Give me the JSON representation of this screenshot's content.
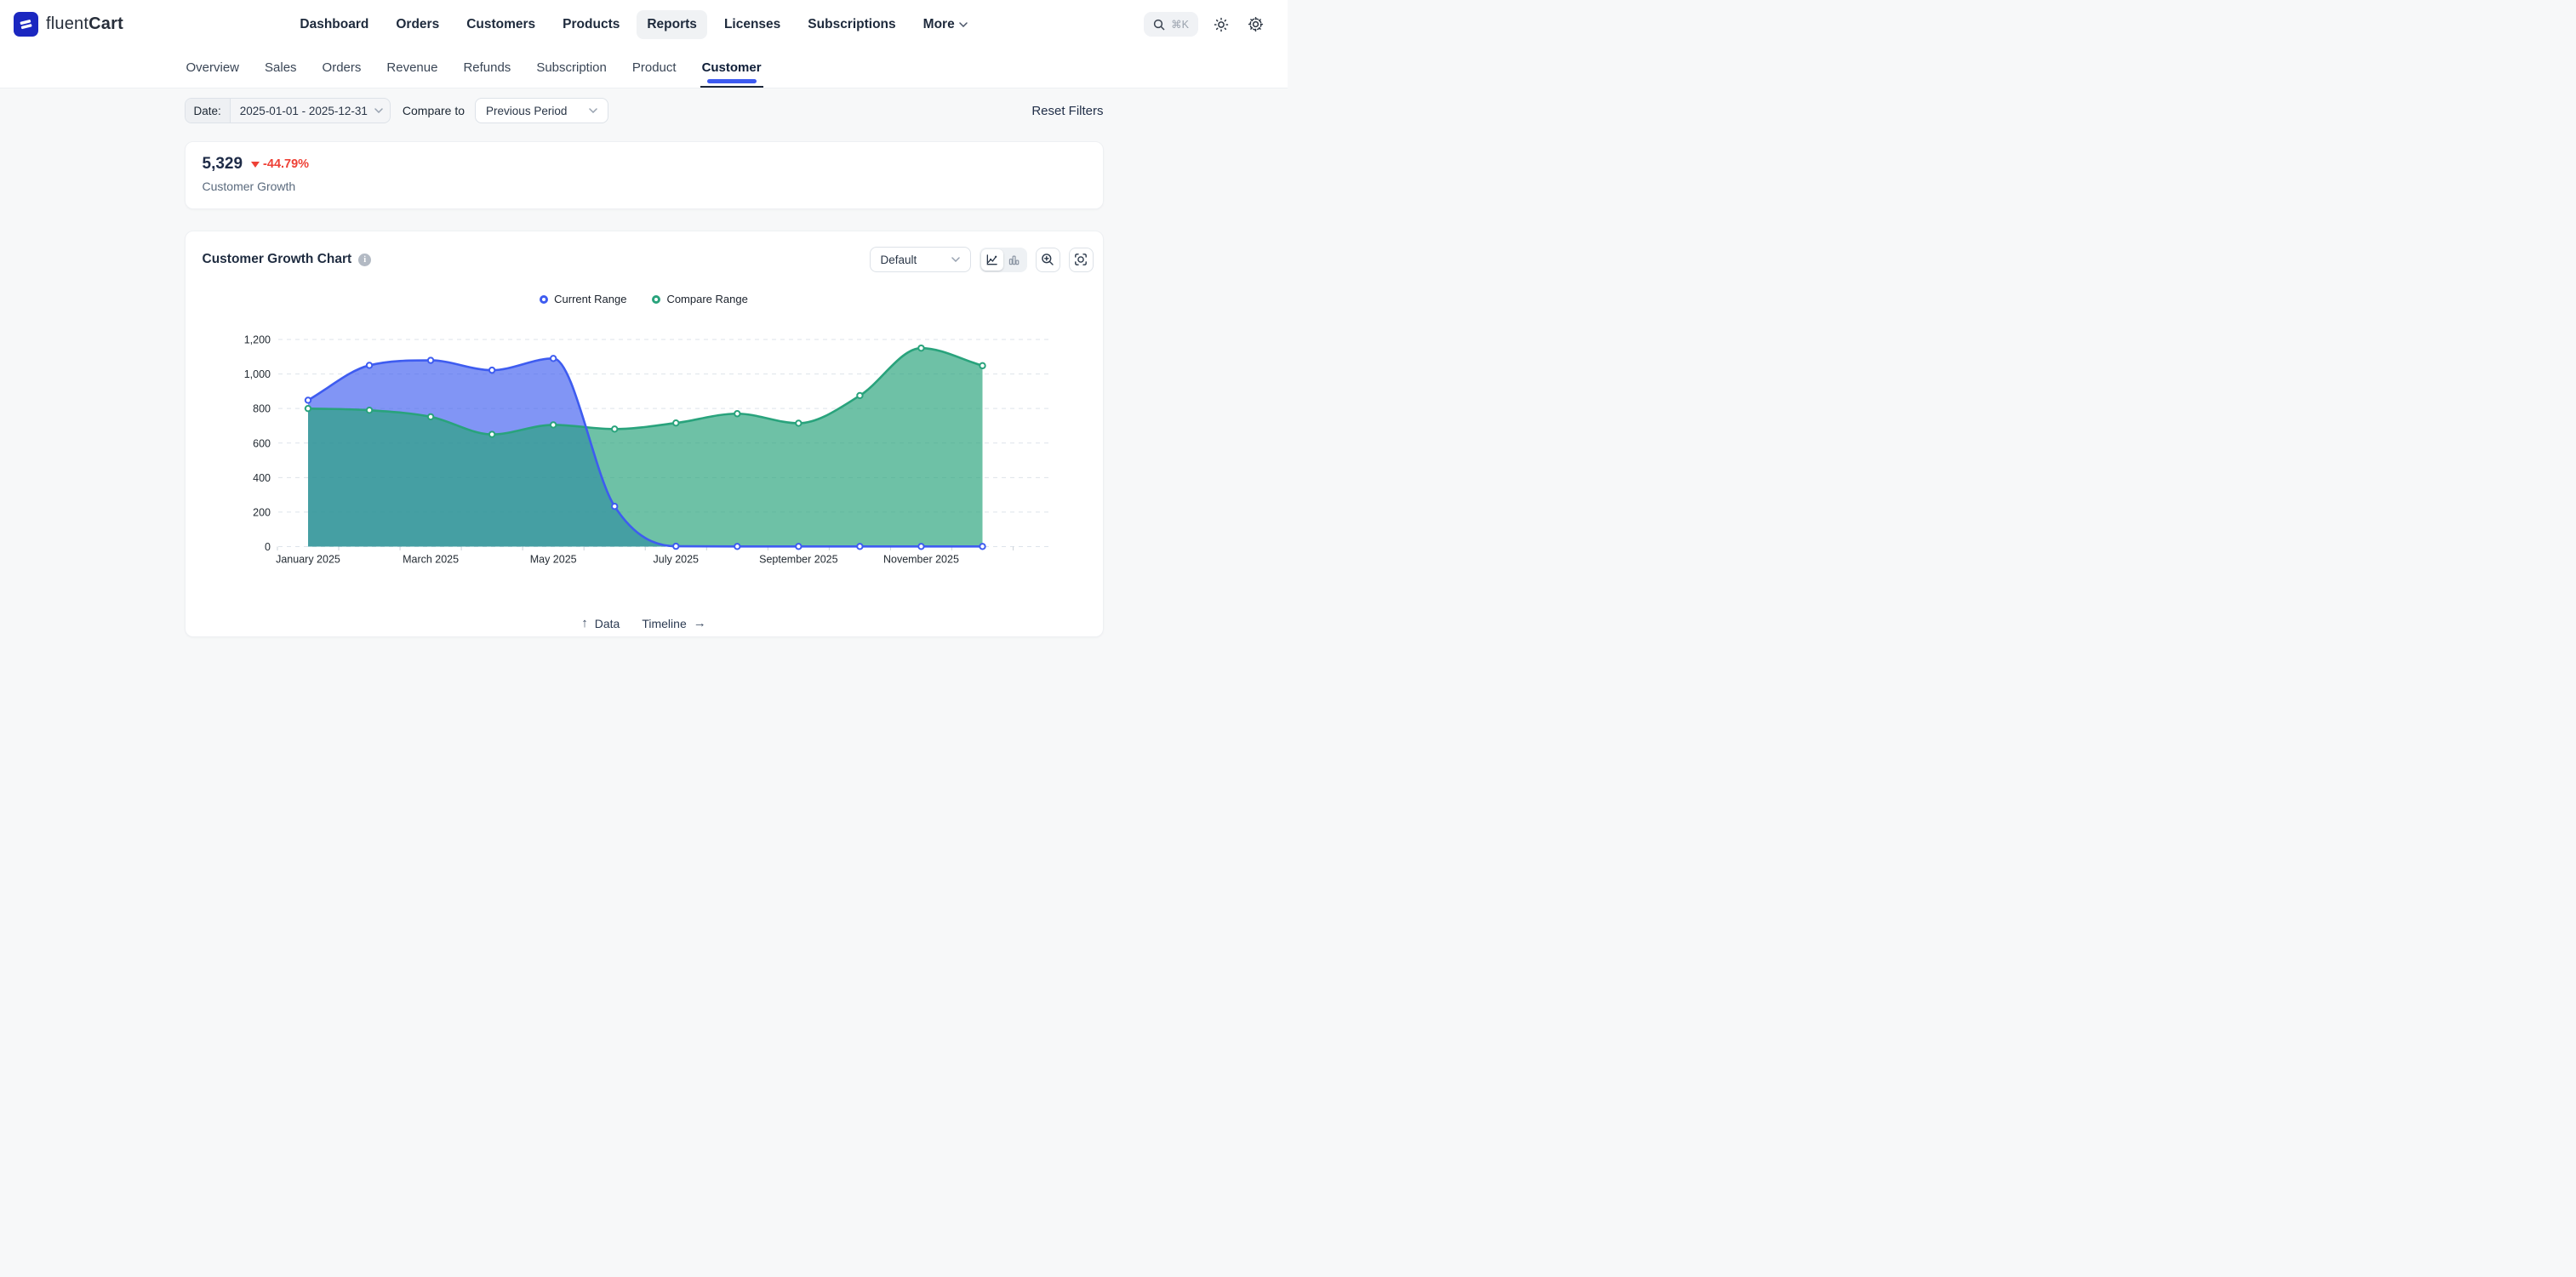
{
  "header": {
    "brand": {
      "name_light": "fluent",
      "name_bold": "Cart"
    },
    "nav": [
      {
        "label": "Dashboard",
        "active": false,
        "has_chevron": false
      },
      {
        "label": "Orders",
        "active": false,
        "has_chevron": false
      },
      {
        "label": "Customers",
        "active": false,
        "has_chevron": false
      },
      {
        "label": "Products",
        "active": false,
        "has_chevron": false
      },
      {
        "label": "Reports",
        "active": true,
        "has_chevron": false
      },
      {
        "label": "Licenses",
        "active": false,
        "has_chevron": false
      },
      {
        "label": "Subscriptions",
        "active": false,
        "has_chevron": false
      },
      {
        "label": "More",
        "active": false,
        "has_chevron": true
      }
    ],
    "search_shortcut": "⌘K"
  },
  "tabs": [
    {
      "label": "Overview",
      "active": false
    },
    {
      "label": "Sales",
      "active": false
    },
    {
      "label": "Orders",
      "active": false
    },
    {
      "label": "Revenue",
      "active": false
    },
    {
      "label": "Refunds",
      "active": false
    },
    {
      "label": "Subscription",
      "active": false
    },
    {
      "label": "Product",
      "active": false
    },
    {
      "label": "Customer",
      "active": true
    }
  ],
  "filters": {
    "date_label": "Date:",
    "date_value": "2025-01-01 - 2025-12-31",
    "compare_label": "Compare to",
    "compare_value": "Previous Period",
    "reset_label": "Reset Filters"
  },
  "stat_card": {
    "value": "5,329",
    "delta": "-44.79%",
    "delta_direction": "down",
    "label": "Customer Growth"
  },
  "chart_card": {
    "title": "Customer Growth Chart",
    "preset_value": "Default",
    "footer": {
      "data_label": "Data",
      "timeline_label": "Timeline"
    }
  },
  "chart_data": {
    "type": "area",
    "title": "Customer Growth Chart",
    "x": [
      "January 2025",
      "February 2025",
      "March 2025",
      "April 2025",
      "May 2025",
      "June 2025",
      "July 2025",
      "August 2025",
      "September 2025",
      "October 2025",
      "November 2025",
      "December 2025"
    ],
    "x_labels_every": 2,
    "series": [
      {
        "name": "Current Range",
        "color": "#3e5cf0",
        "fill_opacity": 0.65,
        "values": [
          848,
          1050,
          1079,
          1022,
          1090,
          233,
          2,
          1,
          1,
          1,
          1,
          1
        ]
      },
      {
        "name": "Compare Range",
        "color": "#29a37c",
        "fill_opacity": 0.68,
        "values": [
          800,
          790,
          752,
          650,
          705,
          681,
          716,
          770,
          715,
          875,
          1150,
          1048
        ]
      }
    ],
    "ylim": [
      0,
      1200
    ],
    "ytick_step": 200,
    "grid": "dashed-horizontal",
    "legend_position": "top-center",
    "smooth": true
  }
}
